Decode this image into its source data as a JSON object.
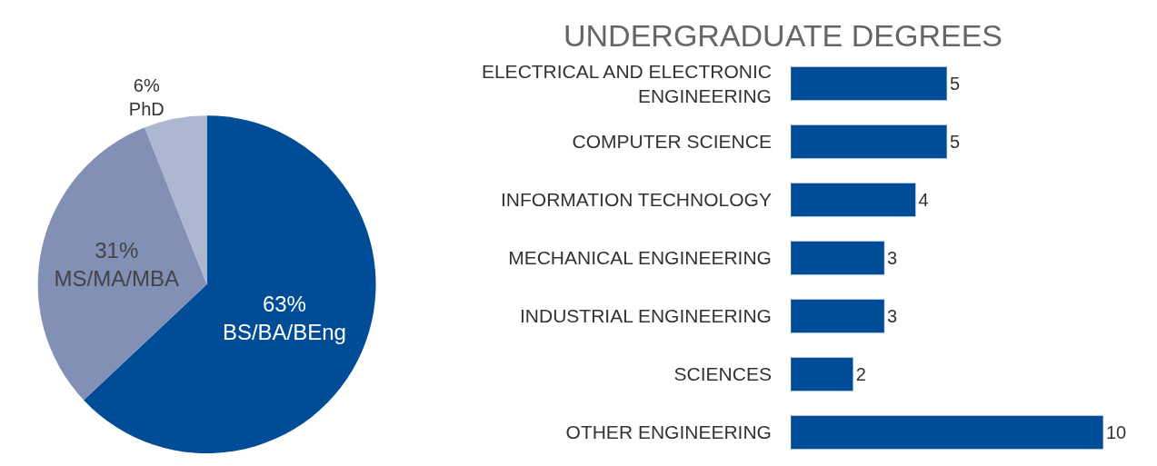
{
  "chart_data": [
    {
      "type": "pie",
      "categories": [
        "BS/BA/BEng",
        "MS/MA/MBA",
        "PhD"
      ],
      "values": [
        63,
        31,
        6
      ],
      "value_labels": [
        "63%",
        "31%",
        "6%"
      ],
      "colors": [
        "#004c97",
        "#8290b6",
        "#adb7d1"
      ],
      "legend": false
    },
    {
      "type": "bar",
      "title": "UNDERGRADUATE DEGREES",
      "orientation": "horizontal",
      "categories": [
        "ELECTRICAL AND ELECTRONIC ENGINEERING",
        "COMPUTER SCIENCE",
        "INFORMATION TECHNOLOGY",
        "MECHANICAL ENGINEERING",
        "INDUSTRIAL ENGINEERING",
        "SCIENCES",
        "OTHER ENGINEERING"
      ],
      "values": [
        5,
        5,
        4,
        3,
        3,
        2,
        10
      ],
      "color": "#004c97",
      "data_labels": true,
      "legend": false
    }
  ]
}
